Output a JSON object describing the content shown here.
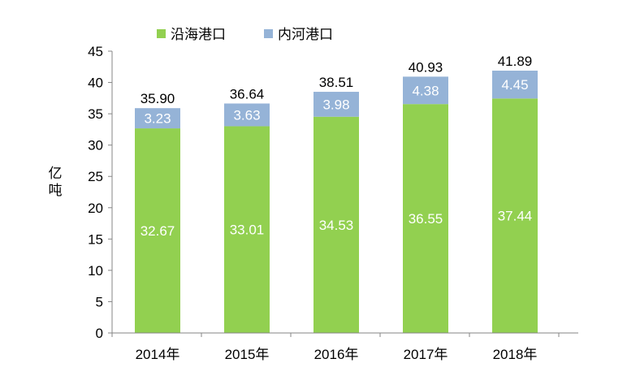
{
  "chart_data": {
    "type": "bar",
    "stacked": true,
    "categories": [
      "2014年",
      "2015年",
      "2016年",
      "2017年",
      "2018年"
    ],
    "series": [
      {
        "name": "沿海港口",
        "color": "#92D050",
        "values": [
          32.67,
          33.01,
          34.53,
          36.55,
          37.44
        ]
      },
      {
        "name": "内河港口",
        "color": "#95B3D7",
        "values": [
          3.23,
          3.63,
          3.98,
          4.38,
          4.45
        ]
      }
    ],
    "totals": [
      "35.90",
      "36.64",
      "38.51",
      "40.93",
      "41.89"
    ],
    "segment_labels": [
      [
        "32.67",
        "33.01",
        "34.53",
        "36.55",
        "37.44"
      ],
      [
        "3.23",
        "3.63",
        "3.98",
        "4.38",
        "4.45"
      ]
    ],
    "ylabel": "亿吨",
    "xlabel": "",
    "title": "",
    "ylim": [
      0,
      45
    ],
    "yticks": [
      0,
      5,
      10,
      15,
      20,
      25,
      30,
      35,
      40,
      45
    ],
    "grid": false,
    "legend_position": "top"
  }
}
